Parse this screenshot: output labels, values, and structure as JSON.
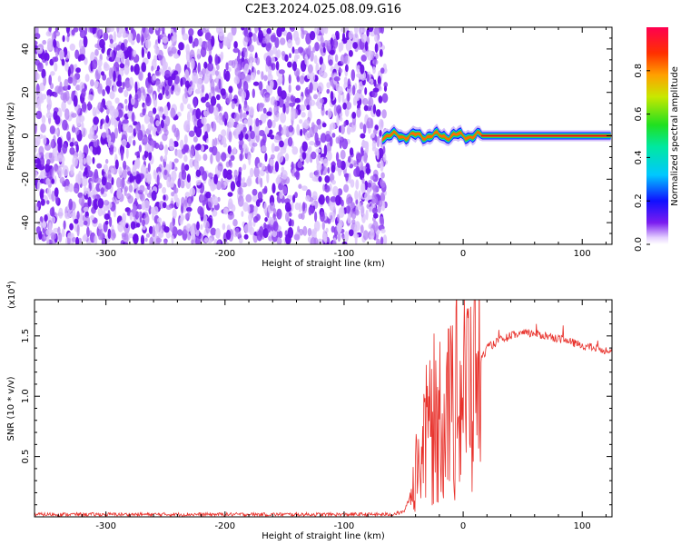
{
  "title": "C2E3.2024.025.08.09.G16",
  "chart_data": [
    {
      "type": "heatmap",
      "xlabel": "Height of straight line (km)",
      "ylabel": "Frequency (Hz)",
      "xlim": [
        -360,
        125
      ],
      "ylim": [
        -50,
        50
      ],
      "x_ticks": [
        -300,
        -200,
        -100,
        0,
        100
      ],
      "y_ticks": [
        -40,
        -20,
        0,
        20,
        40
      ],
      "noise_region_x": [
        -360,
        -68
      ],
      "signal_region_x": [
        -68,
        125
      ],
      "signal_frequency": 0,
      "grid": false,
      "colorbar": {
        "label": "Normalized spectral amplitude",
        "range": [
          0.0,
          1.0
        ],
        "ticks": [
          0.0,
          0.2,
          0.4,
          0.6,
          0.8
        ]
      }
    },
    {
      "type": "line",
      "xlabel": "Height of straight line (km)",
      "ylabel": "SNR (10 * v/v)",
      "y_scale_label": "(x10",
      "y_scale_exponent": "4",
      "xlim": [
        -360,
        125
      ],
      "ylim": [
        0,
        1.8
      ],
      "x_ticks": [
        -300,
        -200,
        -100,
        0,
        100
      ],
      "y_ticks": [
        0.5,
        1.0,
        1.5
      ],
      "y_tick_labels": [
        "0.5",
        "1.0",
        "1.5"
      ],
      "color": "#e8302a",
      "grid": false,
      "series": [
        {
          "x": [
            -360,
            -300,
            -200,
            -100,
            -60,
            -50,
            -45,
            -40,
            -35,
            -30,
            -25,
            -20,
            -15,
            -10,
            -5,
            0,
            5,
            10,
            15,
            20,
            30,
            40,
            50,
            60,
            70,
            80,
            90,
            100,
            110,
            120,
            125
          ],
          "y": [
            0.02,
            0.02,
            0.02,
            0.02,
            0.02,
            0.04,
            0.15,
            0.35,
            0.55,
            0.7,
            0.8,
            0.85,
            0.9,
            0.95,
            1.0,
            1.05,
            1.1,
            1.2,
            1.3,
            1.4,
            1.46,
            1.5,
            1.52,
            1.52,
            1.5,
            1.48,
            1.45,
            1.42,
            1.4,
            1.38,
            1.4
          ]
        }
      ]
    }
  ]
}
